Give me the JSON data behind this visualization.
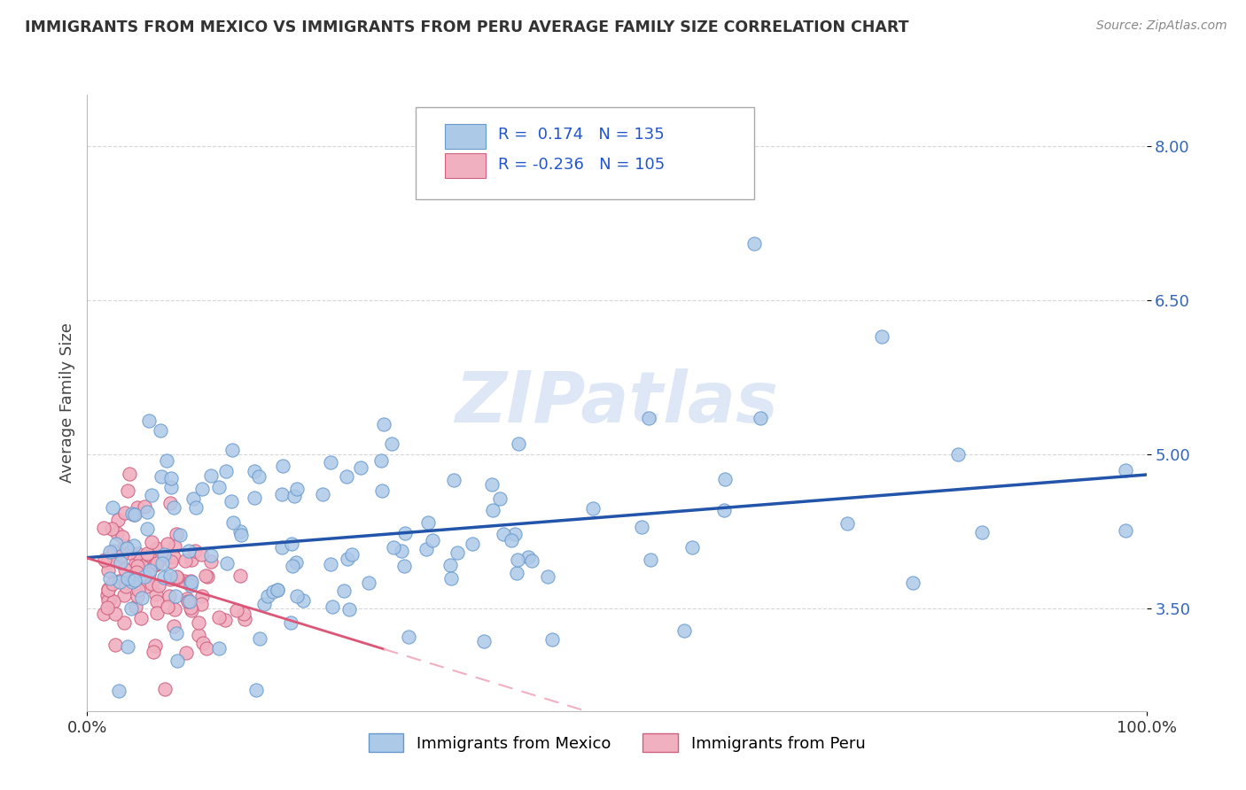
{
  "title": "IMMIGRANTS FROM MEXICO VS IMMIGRANTS FROM PERU AVERAGE FAMILY SIZE CORRELATION CHART",
  "source": "Source: ZipAtlas.com",
  "ylabel": "Average Family Size",
  "xlim": [
    0.0,
    100.0
  ],
  "ylim": [
    2.5,
    8.5
  ],
  "yticks": [
    3.5,
    5.0,
    6.5,
    8.0
  ],
  "ytick_labels": [
    "3.50",
    "5.00",
    "6.50",
    "8.00"
  ],
  "xticks": [
    0.0,
    100.0
  ],
  "xtick_labels": [
    "0.0%",
    "100.0%"
  ],
  "mexico_fill": "#adc9e8",
  "mexico_edge": "#6699cc",
  "peru_fill": "#f0b0c0",
  "peru_edge": "#d06080",
  "mexico_line_color": "#2255aa",
  "peru_line_solid_color": "#dd5577",
  "peru_line_dash_color": "#f0b0c0",
  "mexico_R": 0.174,
  "mexico_N": 135,
  "peru_R": -0.236,
  "peru_N": 105,
  "legend_label_mexico": "Immigrants from Mexico",
  "legend_label_peru": "Immigrants from Peru",
  "watermark": "ZIPatlas",
  "background_color": "#ffffff",
  "grid_color": "#cccccc",
  "title_color": "#333333",
  "axis_label_color": "#444444",
  "right_tick_color": "#3366bb",
  "source_color": "#888888",
  "legend_text_color": "#1a1a1a",
  "legend_value_color": "#2255cc",
  "seed": 99
}
